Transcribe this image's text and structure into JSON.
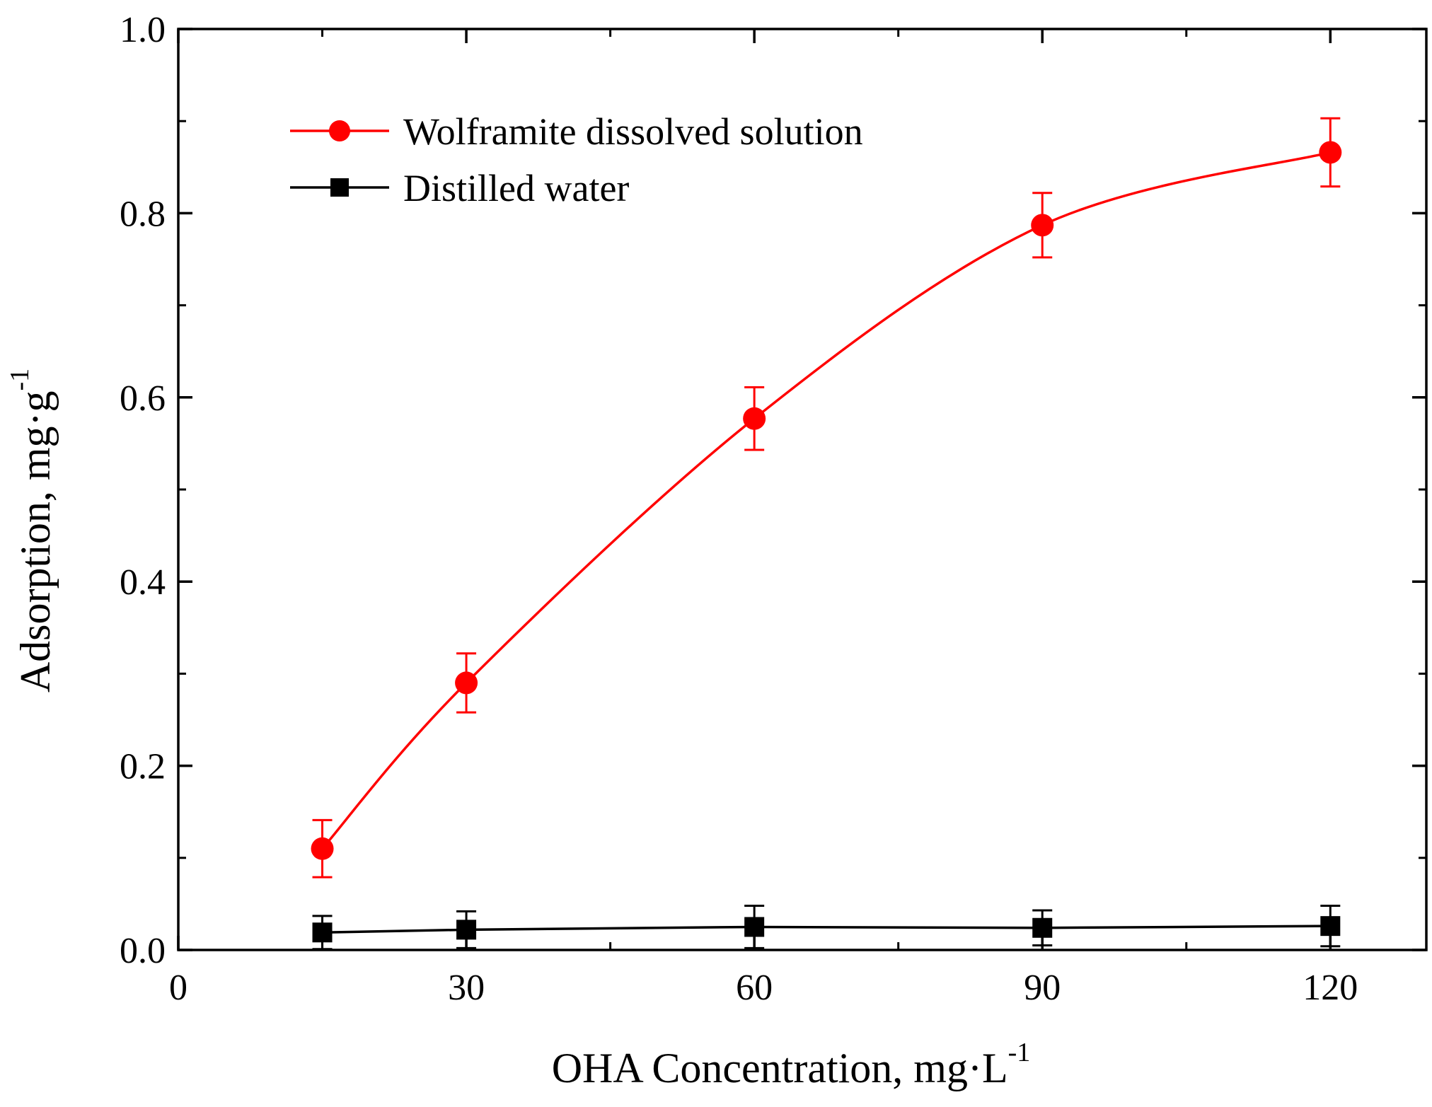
{
  "chart_data": {
    "type": "line",
    "title": "",
    "xlabel": "OHA Concentration, mg·L",
    "xlabel_sup": "-1",
    "ylabel": "Adsorption, mg·g",
    "ylabel_sup": "-1",
    "xlim": [
      0,
      130
    ],
    "ylim": [
      0.0,
      1.0
    ],
    "x_ticks": [
      0,
      30,
      60,
      90,
      120
    ],
    "x_tick_labels": [
      "0",
      "30",
      "60",
      "90",
      "120"
    ],
    "x_minor_ticks": [
      15,
      45,
      75,
      105
    ],
    "y_ticks": [
      0.0,
      0.2,
      0.4,
      0.6,
      0.8,
      1.0
    ],
    "y_tick_labels": [
      "0.0",
      "0.2",
      "0.4",
      "0.6",
      "0.8",
      "1.0"
    ],
    "y_minor_ticks": [
      0.1,
      0.3,
      0.5,
      0.7,
      0.9
    ],
    "legend_position": "top-left",
    "series": [
      {
        "name": "Wolframite dissolved solution",
        "color": "#ff0000",
        "marker": "circle",
        "smooth": true,
        "x": [
          15,
          30,
          60,
          90,
          120
        ],
        "y": [
          0.11,
          0.29,
          0.577,
          0.787,
          0.866
        ],
        "err": [
          0.031,
          0.032,
          0.034,
          0.035,
          0.037
        ]
      },
      {
        "name": "Distilled water",
        "color": "#000000",
        "marker": "square",
        "smooth": false,
        "x": [
          15,
          30,
          60,
          90,
          120
        ],
        "y": [
          0.019,
          0.022,
          0.025,
          0.024,
          0.026
        ],
        "err": [
          0.018,
          0.02,
          0.023,
          0.019,
          0.022
        ]
      }
    ]
  }
}
